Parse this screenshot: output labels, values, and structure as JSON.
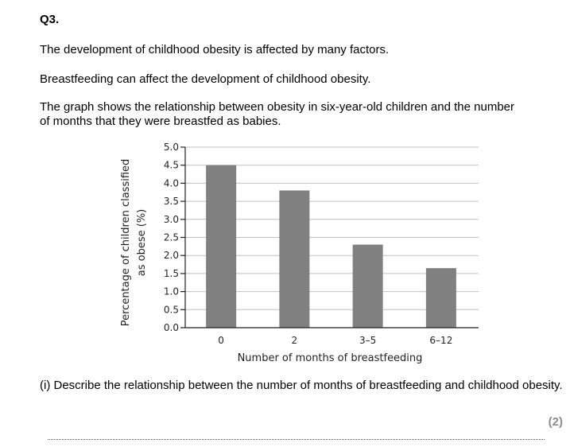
{
  "question": {
    "number": "Q3.",
    "paragraphs": [
      "The development of childhood obesity is affected by many factors.",
      "Breastfeeding can affect the development of childhood obesity.",
      "The graph shows the relationship between obesity in six-year-old children and the number of months that they were breastfed as babies."
    ],
    "part_i": "(i) Describe the relationship between the number of months of breastfeeding and childhood obesity.",
    "marks": "(2)"
  },
  "chart_data": {
    "type": "bar",
    "categories": [
      "0",
      "2",
      "3–5",
      "6–12"
    ],
    "values": [
      4.5,
      3.8,
      2.3,
      1.65
    ],
    "xlabel": "Number of months of breastfeeding",
    "ylabel_lines": [
      "Percentage of children classified",
      "as obese (%)"
    ],
    "ylim": [
      0,
      5.0
    ],
    "yticks": [
      "0.0",
      "0.5",
      "1.0",
      "1.5",
      "2.0",
      "2.5",
      "3.0",
      "3.5",
      "4.0",
      "4.5",
      "5.0"
    ],
    "grid": true,
    "bar_color": "#808080",
    "grid_color": "#bfbfbf"
  }
}
